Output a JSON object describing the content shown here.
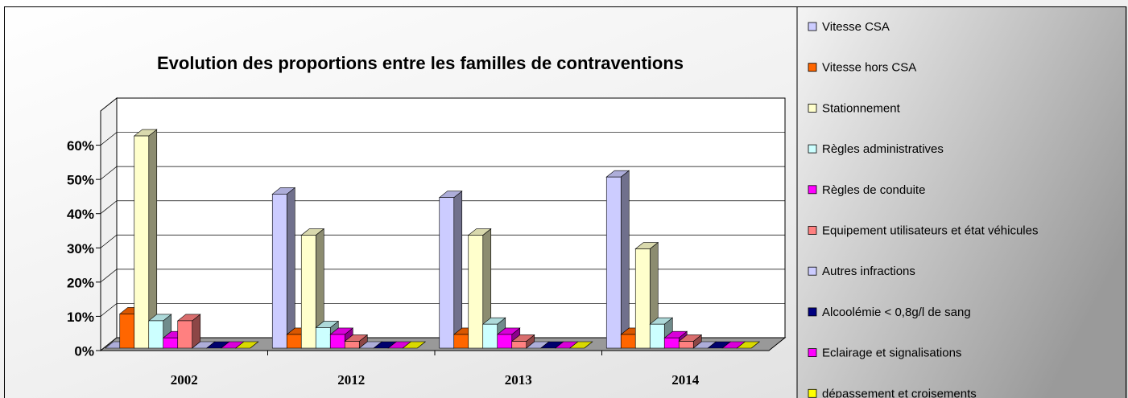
{
  "chart_data": {
    "type": "bar3d",
    "title": "Evolution des proportions entre les familles de contraventions",
    "categories": [
      "2002",
      "2012",
      "2013",
      "2014"
    ],
    "series": [
      {
        "name": "Vitesse  CSA",
        "color": "#ccccff",
        "values": [
          0,
          45,
          44,
          50
        ]
      },
      {
        "name": "Vitesse hors CSA",
        "color": "#ff6600",
        "values": [
          10,
          4,
          4,
          4
        ]
      },
      {
        "name": "Stationnement",
        "color": "#ffffcc",
        "values": [
          62,
          33,
          33,
          29
        ]
      },
      {
        "name": "Règles administratives",
        "color": "#ccffff",
        "values": [
          8,
          6,
          7,
          7
        ]
      },
      {
        "name": "Règles de conduite",
        "color": "#ff00ff",
        "values": [
          3,
          4,
          4,
          3
        ]
      },
      {
        "name": "Equipement utilisateurs et état véhicules",
        "color": "#ff8080",
        "values": [
          8,
          2,
          2,
          2
        ]
      },
      {
        "name": "Autres infractions",
        "color": "#ccccff",
        "values": [
          0,
          0,
          0,
          0
        ]
      },
      {
        "name": "Alcoolémie < 0,8g/l de sang",
        "color": "#000080",
        "values": [
          0,
          0,
          0,
          0
        ]
      },
      {
        "name": "Eclairage et signalisations",
        "color": "#ff00ff",
        "values": [
          0,
          0,
          0,
          0
        ]
      },
      {
        "name": "dépassement et croisements",
        "color": "#ffff00",
        "values": [
          0,
          0,
          0,
          0
        ]
      }
    ],
    "ylim": [
      0,
      70
    ],
    "yticks": [
      {
        "value": 0,
        "label": "0%"
      },
      {
        "value": 10,
        "label": "10%"
      },
      {
        "value": 20,
        "label": "20%"
      },
      {
        "value": 30,
        "label": "30%"
      },
      {
        "value": 40,
        "label": "40%"
      },
      {
        "value": 50,
        "label": "50%"
      },
      {
        "value": 60,
        "label": "60%"
      }
    ],
    "grid": true,
    "legend": "right"
  }
}
